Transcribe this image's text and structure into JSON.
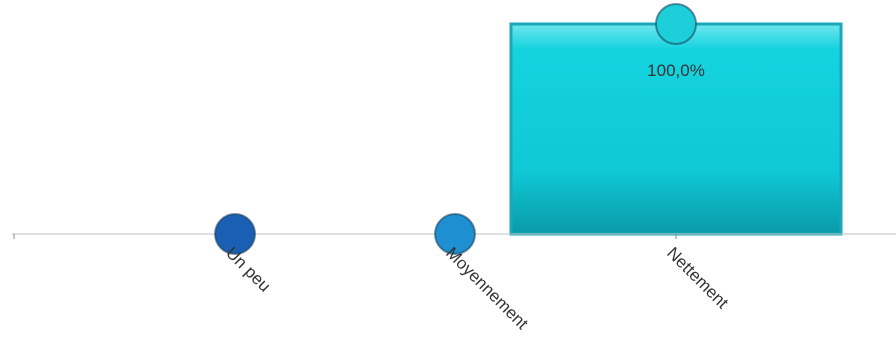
{
  "chart_data": {
    "type": "bar",
    "title": "",
    "xlabel": "",
    "ylabel": "",
    "ylim": [
      0,
      100
    ],
    "grid": false,
    "legend": "none",
    "categories": [
      "",
      "Un peu",
      "Moyennement",
      "Nettement"
    ],
    "values": [
      0,
      0,
      0,
      100
    ],
    "data_labels": [
      "",
      "",
      "",
      "100,0%"
    ],
    "colors": {
      "bar_fill": "#12cfdc",
      "bar_stroke": "#1aa8b8",
      "axis": "#c0c0c0",
      "marker_un_peu": "#1a5fb4",
      "marker_moyennement": "#1e8fd0",
      "marker_nettement": "#1ccfd8"
    }
  }
}
